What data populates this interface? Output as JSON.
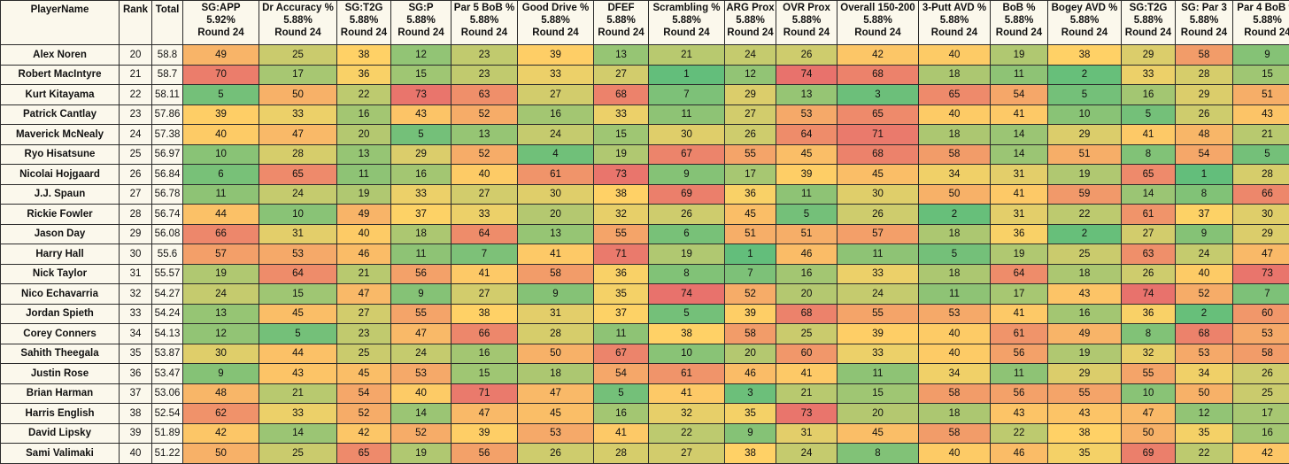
{
  "table": {
    "headers": [
      {
        "label": "PlayerName"
      },
      {
        "label": "Rank"
      },
      {
        "label": "Total"
      },
      {
        "label": "SG:APP",
        "weight": "5.92%",
        "sub": "Round 24"
      },
      {
        "label": "Dr Accuracy %",
        "weight": "5.88%",
        "sub": "Round 24"
      },
      {
        "label": "SG:T2G",
        "weight": "5.88%",
        "sub": "Round 24"
      },
      {
        "label": "SG:P",
        "weight": "5.88%",
        "sub": "Round 24"
      },
      {
        "label": "Par 5 BoB %",
        "weight": "5.88%",
        "sub": "Round 24"
      },
      {
        "label": "Good Drive %",
        "weight": "5.88%",
        "sub": "Round 24"
      },
      {
        "label": "DFEF",
        "weight": "5.88%",
        "sub": "Round 24"
      },
      {
        "label": "Scrambling %",
        "weight": "5.88%",
        "sub": "Round 24"
      },
      {
        "label": "ARG Prox",
        "weight": "5.88%",
        "sub": "Round 24"
      },
      {
        "label": "OVR Prox",
        "weight": "5.88%",
        "sub": "Round 24"
      },
      {
        "label": "Overall 150-200",
        "weight": "5.88%",
        "sub": "Round 24"
      },
      {
        "label": "3-Putt AVD %",
        "weight": "5.88%",
        "sub": "Round 24"
      },
      {
        "label": "BoB %",
        "weight": "5.88%",
        "sub": "Round 24"
      },
      {
        "label": "Bogey AVD %",
        "weight": "5.88%",
        "sub": "Round 24"
      },
      {
        "label": "SG:T2G",
        "weight": "5.88%",
        "sub": "Round 24"
      },
      {
        "label": "SG: Par 3",
        "weight": "5.88%",
        "sub": "Round 24"
      },
      {
        "label": "Par 4 BoB %",
        "weight": "5.88%",
        "sub": "Round 24"
      }
    ],
    "rows": [
      {
        "name": "Alex Noren",
        "rank": "20",
        "total": "58.8",
        "stats": [
          49,
          25,
          38,
          12,
          23,
          39,
          13,
          21,
          24,
          26,
          42,
          40,
          19,
          38,
          29,
          58,
          9
        ]
      },
      {
        "name": "Robert MacIntyre",
        "rank": "21",
        "total": "58.7",
        "stats": [
          70,
          17,
          36,
          15,
          23,
          33,
          27,
          1,
          12,
          74,
          68,
          18,
          11,
          2,
          33,
          28,
          15
        ]
      },
      {
        "name": "Kurt Kitayama",
        "rank": "22",
        "total": "58.11",
        "stats": [
          5,
          50,
          22,
          73,
          63,
          27,
          68,
          7,
          29,
          13,
          3,
          65,
          54,
          5,
          16,
          29,
          51
        ]
      },
      {
        "name": "Patrick Cantlay",
        "rank": "23",
        "total": "57.86",
        "stats": [
          39,
          33,
          16,
          43,
          52,
          16,
          33,
          11,
          27,
          53,
          65,
          40,
          41,
          10,
          5,
          26,
          43
        ]
      },
      {
        "name": "Maverick McNealy",
        "rank": "24",
        "total": "57.38",
        "stats": [
          40,
          47,
          20,
          5,
          13,
          24,
          15,
          30,
          26,
          64,
          71,
          18,
          14,
          29,
          41,
          48,
          21
        ]
      },
      {
        "name": "Ryo Hisatsune",
        "rank": "25",
        "total": "56.97",
        "stats": [
          10,
          28,
          13,
          29,
          52,
          4,
          19,
          67,
          55,
          45,
          68,
          58,
          14,
          51,
          8,
          54,
          5
        ]
      },
      {
        "name": "Nicolai Hojgaard",
        "rank": "26",
        "total": "56.84",
        "stats": [
          6,
          65,
          11,
          16,
          40,
          61,
          73,
          9,
          17,
          39,
          45,
          34,
          31,
          19,
          65,
          1,
          28
        ]
      },
      {
        "name": "J.J. Spaun",
        "rank": "27",
        "total": "56.78",
        "stats": [
          11,
          24,
          19,
          33,
          27,
          30,
          38,
          69,
          36,
          11,
          30,
          50,
          41,
          59,
          14,
          8,
          66
        ]
      },
      {
        "name": "Rickie Fowler",
        "rank": "28",
        "total": "56.74",
        "stats": [
          44,
          10,
          49,
          37,
          33,
          20,
          32,
          26,
          45,
          5,
          26,
          2,
          31,
          22,
          61,
          37,
          30
        ]
      },
      {
        "name": "Jason Day",
        "rank": "29",
        "total": "56.08",
        "stats": [
          66,
          31,
          40,
          18,
          64,
          13,
          55,
          6,
          51,
          51,
          57,
          18,
          36,
          2,
          27,
          9,
          29
        ]
      },
      {
        "name": "Harry Hall",
        "rank": "30",
        "total": "55.6",
        "stats": [
          57,
          53,
          46,
          11,
          7,
          41,
          71,
          19,
          1,
          46,
          11,
          5,
          19,
          25,
          63,
          24,
          47
        ]
      },
      {
        "name": "Nick Taylor",
        "rank": "31",
        "total": "55.57",
        "stats": [
          19,
          64,
          21,
          56,
          41,
          58,
          36,
          8,
          7,
          16,
          33,
          18,
          64,
          18,
          26,
          40,
          73
        ]
      },
      {
        "name": "Nico Echavarria",
        "rank": "32",
        "total": "54.27",
        "stats": [
          24,
          15,
          47,
          9,
          27,
          9,
          35,
          74,
          52,
          20,
          24,
          11,
          17,
          43,
          74,
          52,
          7
        ]
      },
      {
        "name": "Jordan Spieth",
        "rank": "33",
        "total": "54.24",
        "stats": [
          13,
          45,
          27,
          55,
          38,
          31,
          37,
          5,
          39,
          68,
          55,
          53,
          41,
          16,
          36,
          2,
          60
        ]
      },
      {
        "name": "Corey Conners",
        "rank": "34",
        "total": "54.13",
        "stats": [
          12,
          5,
          23,
          47,
          66,
          28,
          11,
          38,
          58,
          25,
          39,
          40,
          61,
          49,
          8,
          68,
          53
        ]
      },
      {
        "name": "Sahith Theegala",
        "rank": "35",
        "total": "53.87",
        "stats": [
          30,
          44,
          25,
          24,
          16,
          50,
          67,
          10,
          20,
          60,
          33,
          40,
          56,
          19,
          32,
          53,
          58
        ]
      },
      {
        "name": "Justin Rose",
        "rank": "36",
        "total": "53.47",
        "stats": [
          9,
          43,
          45,
          53,
          15,
          18,
          54,
          61,
          46,
          41,
          11,
          34,
          11,
          29,
          55,
          34,
          26
        ]
      },
      {
        "name": "Brian Harman",
        "rank": "37",
        "total": "53.06",
        "stats": [
          48,
          21,
          54,
          40,
          71,
          47,
          5,
          41,
          3,
          21,
          15,
          58,
          56,
          55,
          10,
          50,
          25
        ]
      },
      {
        "name": "Harris English",
        "rank": "38",
        "total": "52.54",
        "stats": [
          62,
          33,
          52,
          14,
          47,
          45,
          16,
          32,
          35,
          73,
          20,
          18,
          43,
          43,
          47,
          12,
          17
        ]
      },
      {
        "name": "David Lipsky",
        "rank": "39",
        "total": "51.89",
        "stats": [
          42,
          14,
          42,
          52,
          39,
          53,
          41,
          22,
          9,
          31,
          45,
          58,
          22,
          38,
          50,
          35,
          16
        ]
      },
      {
        "name": "Sami Valimaki",
        "rank": "40",
        "total": "51.22",
        "stats": [
          50,
          25,
          65,
          19,
          56,
          26,
          28,
          27,
          38,
          24,
          8,
          40,
          46,
          35,
          69,
          22,
          42
        ]
      }
    ]
  }
}
